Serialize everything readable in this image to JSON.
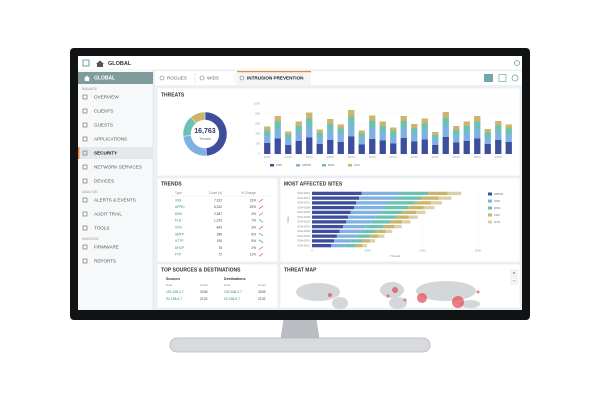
{
  "header": {
    "title": "GLOBAL"
  },
  "sidebar": {
    "home": {
      "label": "GLOBAL"
    },
    "sections": [
      {
        "title": "MANAGE",
        "items": [
          {
            "label": "OVERVIEW"
          },
          {
            "label": "CLIENTS"
          },
          {
            "label": "GUESTS"
          },
          {
            "label": "APPLICATIONS"
          },
          {
            "label": "SECURITY",
            "selected": true
          },
          {
            "label": "NETWORK SERVICES"
          },
          {
            "label": "DEVICES"
          }
        ]
      },
      {
        "title": "ANALYZE",
        "items": [
          {
            "label": "ALERTS & EVENTS"
          },
          {
            "label": "AUDIT TRAIL"
          },
          {
            "label": "TOOLS"
          }
        ]
      },
      {
        "title": "MAINTAIN",
        "items": [
          {
            "label": "FIRMWARE"
          },
          {
            "label": "REPORTS"
          }
        ]
      }
    ]
  },
  "tabs": [
    {
      "label": "ROGUES"
    },
    {
      "label": "WIDS"
    },
    {
      "label": "INTRUSION PREVENTION",
      "active": true
    }
  ],
  "threats": {
    "title": "THREATS",
    "total": "16,763",
    "total_label": "Threats",
    "donut": {
      "values": [
        8200,
        4100,
        2600,
        1863
      ],
      "colors": [
        "#3d4f9c",
        "#7fb2e3",
        "#6cc2b2",
        "#c9b56c"
      ]
    },
    "chart_data": {
      "type": "bar",
      "stacked": true,
      "categories": [
        "12:00",
        null,
        "14:00",
        null,
        "16:00",
        null,
        "18:00",
        null,
        "20:00",
        null,
        "22:00",
        null,
        "00:00",
        null,
        "02:00",
        null,
        "04:00",
        null,
        "06:00",
        null,
        "08:00",
        null,
        "10:00",
        null
      ],
      "series": [
        {
          "name": "XSS",
          "color": "#3d4f9c",
          "values": [
            220,
            310,
            180,
            260,
            330,
            200,
            280,
            240,
            350,
            190,
            300,
            270,
            210,
            320,
            250,
            290,
            180,
            340,
            230,
            260,
            310,
            200,
            280,
            240
          ]
        },
        {
          "name": "APPID",
          "color": "#7fb2e3",
          "values": [
            150,
            200,
            120,
            180,
            220,
            140,
            190,
            160,
            230,
            130,
            210,
            170,
            150,
            200,
            160,
            190,
            120,
            220,
            150,
            180,
            200,
            140,
            170,
            160
          ]
        },
        {
          "name": "DNS",
          "color": "#6cc2b2",
          "values": [
            100,
            140,
            90,
            120,
            160,
            80,
            130,
            110,
            170,
            90,
            150,
            120,
            100,
            140,
            110,
            130,
            80,
            160,
            100,
            120,
            140,
            90,
            120,
            110
          ]
        },
        {
          "name": "FLD",
          "color": "#c9b56c",
          "values": [
            80,
            110,
            60,
            90,
            120,
            70,
            100,
            80,
            130,
            60,
            110,
            90,
            70,
            100,
            80,
            100,
            60,
            120,
            80,
            90,
            110,
            70,
            90,
            80
          ]
        }
      ],
      "ylim": [
        0,
        1000
      ],
      "yticks": [
        0,
        200,
        400,
        600,
        800,
        1000
      ],
      "grid": true
    }
  },
  "trends": {
    "title": "TRENDS",
    "columns": [
      "Type",
      "Count (#)",
      "% Change"
    ],
    "rows": [
      {
        "type": "XSS",
        "count": "7,322",
        "change": "13%",
        "direction": "up"
      },
      {
        "type": "APPID",
        "count": "5,342",
        "change": "23%",
        "direction": "up"
      },
      {
        "type": "DNS",
        "count": "2,387",
        "change": "4%",
        "direction": "up"
      },
      {
        "type": "FLD",
        "count": "1,233",
        "change": "7%",
        "direction": "down"
      },
      {
        "type": "SYN",
        "count": "843",
        "change": "3%",
        "direction": "up"
      },
      {
        "type": "SMTP",
        "count": "385",
        "change": "6%",
        "direction": "down"
      },
      {
        "type": "HTTP",
        "count": "190",
        "change": "5%",
        "direction": "down"
      },
      {
        "type": "DHCP",
        "count": "78",
        "change": "2%",
        "direction": "up"
      },
      {
        "type": "FTP",
        "count": "72",
        "change": "11%",
        "direction": "up"
      }
    ]
  },
  "sites": {
    "title": "MOST AFFECTED SITES",
    "chart_data": {
      "type": "hbar",
      "stacked": true,
      "ylabel": "Sites",
      "xlabel": "Threats",
      "categories": [
        "SSH-0012",
        "SSH-0017",
        "SSH-0021",
        "SSH-0008",
        "SSH-0033",
        "SSH-0005",
        "SSH-0026",
        "SSH-0014",
        "SSH-0030",
        "SSH-0002",
        "SSH-0019",
        "SSH-0011"
      ],
      "series": [
        {
          "name": "APPID",
          "color": "#3d4f9c",
          "values": [
            900,
            850,
            800,
            760,
            700,
            650,
            620,
            560,
            500,
            450,
            400,
            350
          ]
        },
        {
          "name": "XSS",
          "color": "#7fb2e3",
          "values": [
            700,
            650,
            600,
            560,
            540,
            500,
            460,
            430,
            380,
            350,
            300,
            260
          ]
        },
        {
          "name": "DNS",
          "color": "#6cc2b2",
          "values": [
            500,
            470,
            450,
            420,
            380,
            360,
            330,
            300,
            270,
            240,
            210,
            180
          ]
        },
        {
          "name": "FLD",
          "color": "#c9b56c",
          "values": [
            350,
            320,
            300,
            280,
            260,
            240,
            220,
            200,
            180,
            160,
            140,
            120
          ]
        },
        {
          "name": "SYN",
          "color": "#ddd0a8",
          "values": [
            250,
            230,
            200,
            190,
            170,
            160,
            150,
            130,
            120,
            110,
            90,
            80
          ]
        }
      ],
      "xlim": [
        0,
        3000
      ],
      "xticks": [
        0,
        1000,
        2000,
        3000
      ],
      "grid": true
    }
  },
  "sources": {
    "title": "TOP SOURCES & DESTINATIONS",
    "groups": [
      {
        "title": "Sources",
        "columns": [
          "Host",
          "Count"
        ],
        "rows": [
          [
            "192.168.2.7",
            "3246"
          ],
          [
            "92.158.6.7",
            "2132"
          ]
        ]
      },
      {
        "title": "Destinations",
        "columns": [
          "Host",
          "Count"
        ],
        "rows": [
          [
            "192.168.2.7",
            "3246"
          ],
          [
            "92.158.6.7",
            "2132"
          ]
        ]
      }
    ]
  },
  "map": {
    "title": "THREAT MAP"
  }
}
